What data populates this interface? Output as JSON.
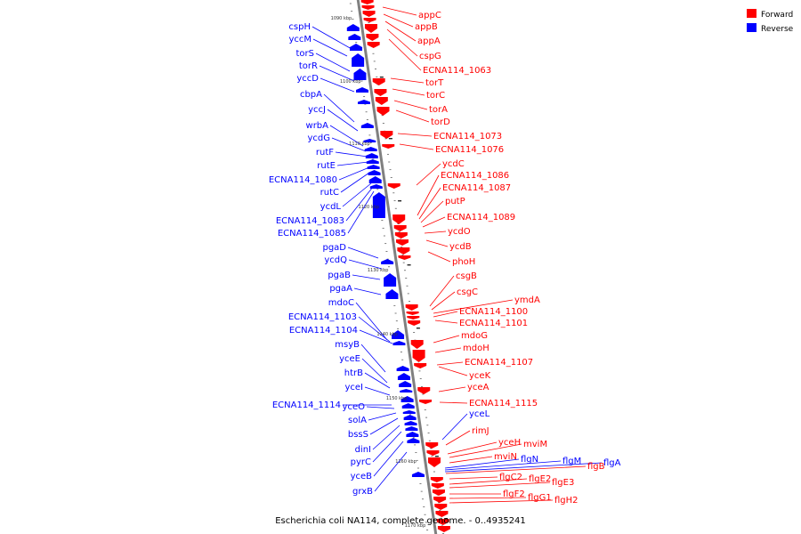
{
  "colors": {
    "forward": "#ff0000",
    "reverse": "#0000ff",
    "backbone": "#808080"
  },
  "legend": {
    "forward": {
      "label": "Forward",
      "color": "#ff0000"
    },
    "reverse": {
      "label": "Reverse",
      "color": "#0000ff"
    }
  },
  "caption": "Escherichia coli NA114, complete genome. - 0..4935241",
  "kbp_marks": [
    "1090 kbp",
    "1100 kbp",
    "1110 kbp",
    "1120 kbp",
    "1130 kbp",
    "1140 kbp",
    "1150 kbp",
    "1160 kbp",
    "1170 kbp"
  ],
  "reverse_genes": [
    "cspH",
    "yccM",
    "torS",
    "torR",
    "yccD",
    "cbpA",
    "yccJ",
    "wrbA",
    "ycdG",
    "rutF",
    "rutE",
    "ECNA114_1080",
    "rutC",
    "ycdL",
    "ECNA114_1083",
    "ECNA114_1085",
    "pgaD",
    "ycdQ",
    "pgaB",
    "pgaA",
    "mdoC",
    "ECNA114_1103",
    "ECNA114_1104",
    "msyB",
    "yceE",
    "htrB",
    "yceI",
    "ECNA114_1114",
    "yceO",
    "solA",
    "bssS",
    "dinI",
    "pyrC",
    "yceB",
    "grxB",
    "yceL",
    "flgN",
    "flgM",
    "flgA"
  ],
  "forward_genes": [
    "appC",
    "appB",
    "appA",
    "cspG",
    "ECNA114_1063",
    "torT",
    "torC",
    "torA",
    "torD",
    "ECNA114_1073",
    "ECNA114_1076",
    "ycdC",
    "ECNA114_1086",
    "ECNA114_1087",
    "putP",
    "ECNA114_1089",
    "ycdO",
    "ycdB",
    "phoH",
    "csgB",
    "csgC",
    "ymdA",
    "ECNA114_1100",
    "ECNA114_1101",
    "mdoG",
    "mdoH",
    "ECNA114_1107",
    "yceK",
    "yceA",
    "ECNA114_1115",
    "rimJ",
    "yceH",
    "mviM",
    "mviN",
    "flgB",
    "flgC2",
    "flgE2",
    "flgE3",
    "flgF2",
    "flgG1",
    "flgH2"
  ]
}
